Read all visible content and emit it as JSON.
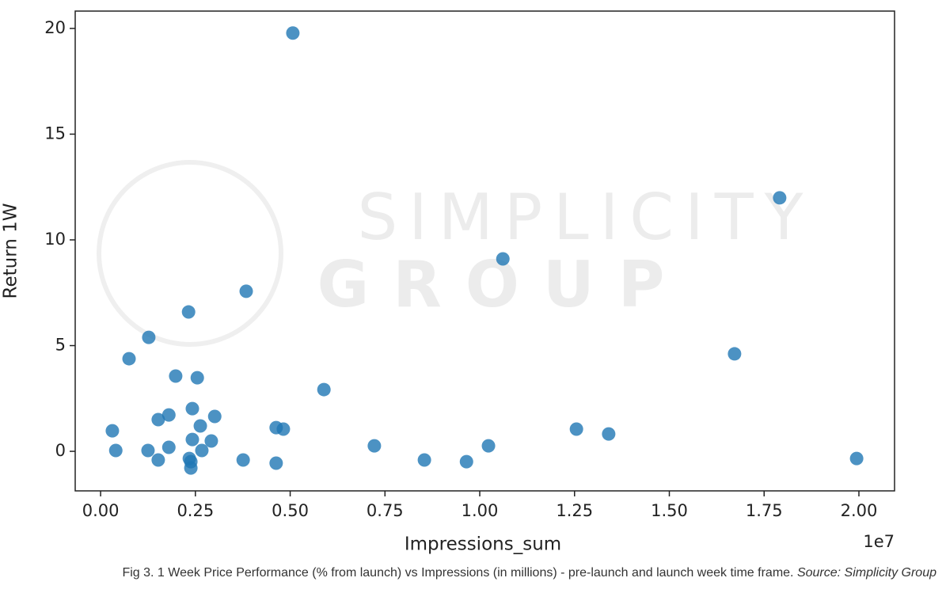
{
  "chart_data": {
    "type": "scatter",
    "x_label": "Impressions_sum",
    "y_label": "Return 1W",
    "x_offset_label": "1e7",
    "watermark": [
      "SIMPLICITY",
      "GROUP"
    ],
    "caption": "Fig 3. 1 Week Price Performance (% from launch) vs Impressions (in millions) - pre-launch and launch week time frame.",
    "caption_source": "Source: Simplicity Group",
    "color": "#1f77b4",
    "x": [
      0.507,
      1.791,
      1.061,
      0.384,
      0.232,
      0.127,
      0.075,
      1.672,
      0.198,
      0.255,
      0.589,
      0.242,
      0.301,
      0.18,
      0.152,
      0.263,
      0.463,
      0.482,
      1.255,
      1.34,
      0.031,
      0.242,
      0.292,
      0.722,
      1.023,
      0.18,
      0.04,
      0.125,
      0.267,
      0.152,
      0.234,
      0.238,
      0.376,
      0.463,
      0.854,
      0.965,
      1.994,
      0.238
    ],
    "values": [
      19.78,
      11.99,
      9.1,
      7.57,
      6.59,
      5.39,
      4.38,
      4.61,
      3.56,
      3.48,
      2.92,
      2.02,
      1.65,
      1.72,
      1.5,
      1.2,
      1.12,
      1.05,
      1.05,
      0.82,
      0.97,
      0.56,
      0.49,
      0.26,
      0.26,
      0.19,
      0.04,
      0.04,
      0.04,
      -0.41,
      -0.34,
      -0.49,
      -0.41,
      -0.56,
      -0.41,
      -0.49,
      -0.34,
      -0.79
    ],
    "xlim": [
      -0.067,
      2.094
    ],
    "ylim": [
      -1.87,
      20.82
    ],
    "xticks": [
      {
        "value": 0,
        "label": "0.00"
      },
      {
        "value": 0.25,
        "label": "0.25"
      },
      {
        "value": 0.5,
        "label": "0.50"
      },
      {
        "value": 0.75,
        "label": "0.75"
      },
      {
        "value": 1,
        "label": "1.00"
      },
      {
        "value": 1.25,
        "label": "1.25"
      },
      {
        "value": 1.5,
        "label": "1.50"
      },
      {
        "value": 1.75,
        "label": "1.75"
      },
      {
        "value": 2,
        "label": "2.00"
      }
    ],
    "yticks": [
      0,
      5,
      10,
      15,
      20
    ]
  }
}
